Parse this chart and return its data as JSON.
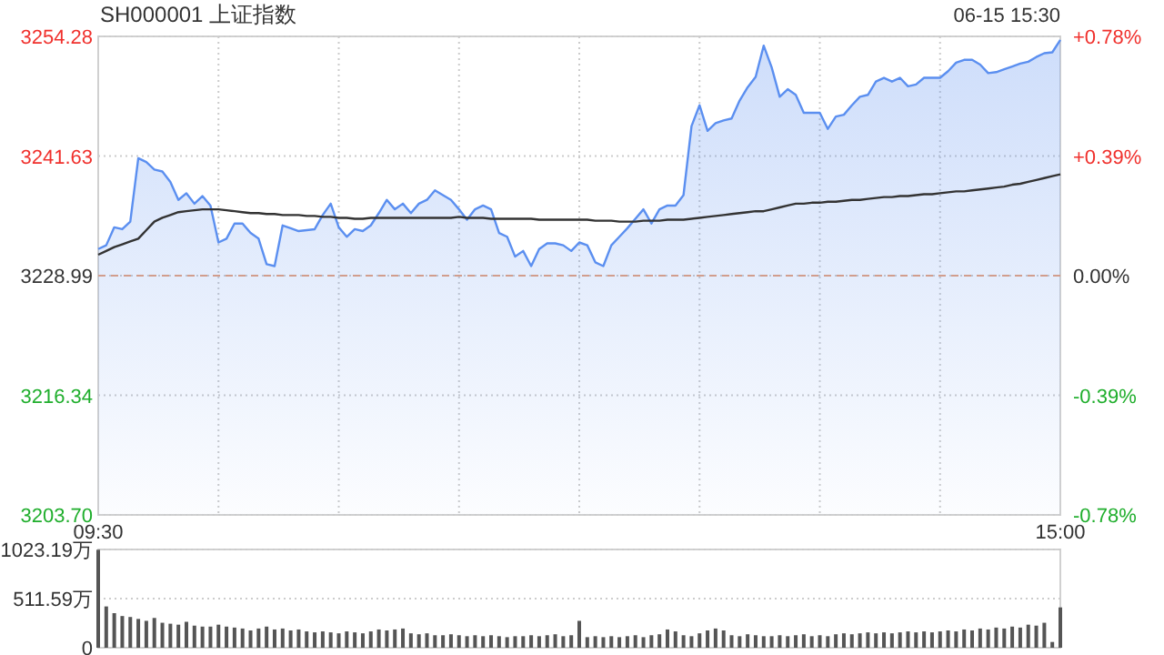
{
  "chart_data": [
    {
      "type": "area",
      "title": "SH000001 上证指数",
      "annotations": [
        "06-15 15:30"
      ],
      "ylim": [
        3203.7,
        3254.28
      ],
      "y2lim": [
        -0.78,
        0.78
      ],
      "categories": [
        "09:30",
        null,
        null,
        null,
        null,
        null,
        null,
        null,
        null,
        null,
        null,
        null,
        null,
        null,
        null,
        null,
        null,
        null,
        null,
        null,
        null,
        null,
        null,
        null,
        null,
        null,
        null,
        null,
        null,
        null,
        null,
        null,
        null,
        null,
        null,
        null,
        null,
        null,
        null,
        null,
        null,
        null,
        null,
        null,
        null,
        null,
        null,
        null,
        null,
        null,
        null,
        null,
        null,
        null,
        null,
        null,
        null,
        null,
        null,
        null,
        null,
        null,
        null,
        null,
        null,
        null,
        null,
        null,
        null,
        null,
        null,
        null,
        null,
        null,
        null,
        null,
        null,
        null,
        null,
        null,
        null,
        null,
        null,
        null,
        null,
        null,
        null,
        null,
        null,
        null,
        null,
        null,
        null,
        null,
        null,
        null,
        null,
        null,
        null,
        null,
        null,
        null,
        null,
        null,
        null,
        null,
        null,
        null,
        null,
        null,
        null,
        null,
        null,
        null,
        null,
        null,
        null,
        null,
        null,
        null,
        "15:00"
      ],
      "yticks": [
        {
          "value": 3203.7,
          "label": "3203.70"
        },
        3216.34,
        3228.99,
        3241.63,
        3254.28
      ],
      "y2ticks": [
        {
          "value": -0.78,
          "label": "-0.78%"
        },
        {
          "value": -0.39,
          "label": "-0.39%"
        },
        {
          "value": 0,
          "label": "0.00%"
        },
        {
          "value": 0.39,
          "label": "+0.39%"
        },
        {
          "value": 0.78,
          "label": "+0.78%"
        }
      ],
      "grid": true,
      "ref_lines": [
        {
          "axis": "y",
          "value": 3228.99,
          "color": "#e8a07a",
          "line_style": "dashed"
        }
      ],
      "series": [
        {
          "color": "#5b8ff0",
          "values": [
            3231.8,
            3232.2,
            3234.1,
            3233.9,
            3234.7,
            3241.4,
            3241.0,
            3240.2,
            3240.0,
            3238.9,
            3237.0,
            3237.7,
            3236.6,
            3237.4,
            3236.4,
            3232.5,
            3232.9,
            3234.5,
            3234.5,
            3233.5,
            3232.9,
            3230.2,
            3230.0,
            3234.3,
            3234.0,
            3233.7,
            3233.8,
            3233.9,
            3235.4,
            3236.6,
            3234.1,
            3233.1,
            3233.9,
            3233.7,
            3234.3,
            3235.6,
            3237.0,
            3236.0,
            3236.6,
            3235.6,
            3236.6,
            3237.0,
            3238.0,
            3237.5,
            3237.0,
            3236.0,
            3234.9,
            3236.0,
            3236.4,
            3236.0,
            3233.5,
            3233.1,
            3231.0,
            3231.6,
            3230.0,
            3231.8,
            3232.4,
            3232.4,
            3232.2,
            3231.6,
            3232.5,
            3232.2,
            3230.4,
            3230.0,
            3232.2,
            3233.1,
            3234.0,
            3235.0,
            3236.0,
            3234.5,
            3236.0,
            3236.4,
            3236.4,
            3237.5,
            3244.8,
            3247.0,
            3244.3,
            3245.1,
            3245.4,
            3245.6,
            3247.5,
            3248.9,
            3250.0,
            3253.3,
            3251.0,
            3247.9,
            3248.7,
            3248.1,
            3246.2,
            3246.2,
            3246.2,
            3244.5,
            3245.8,
            3246.0,
            3247.0,
            3247.9,
            3248.1,
            3249.5,
            3249.9,
            3249.5,
            3249.9,
            3249.0,
            3249.2,
            3249.9,
            3249.9,
            3249.9,
            3250.6,
            3251.5,
            3251.8,
            3251.8,
            3251.3,
            3250.4,
            3250.5,
            3250.8,
            3251.1,
            3251.4,
            3251.6,
            3252.1,
            3252.5,
            3252.6,
            3253.9
          ]
        },
        {
          "type": "line",
          "color": "#333333",
          "values": [
            3231.2,
            3231.6,
            3232.0,
            3232.3,
            3232.6,
            3232.9,
            3233.8,
            3234.7,
            3235.1,
            3235.4,
            3235.7,
            3235.8,
            3235.9,
            3236.0,
            3236.0,
            3236.0,
            3235.9,
            3235.8,
            3235.7,
            3235.6,
            3235.6,
            3235.5,
            3235.5,
            3235.4,
            3235.4,
            3235.4,
            3235.3,
            3235.3,
            3235.2,
            3235.2,
            3235.1,
            3235.1,
            3235.0,
            3235.0,
            3235.1,
            3235.1,
            3235.1,
            3235.1,
            3235.1,
            3235.1,
            3235.1,
            3235.1,
            3235.1,
            3235.1,
            3235.1,
            3235.2,
            3235.1,
            3235.1,
            3235.1,
            3235.0,
            3235.0,
            3235.0,
            3235.0,
            3235.0,
            3235.0,
            3234.9,
            3234.9,
            3234.9,
            3234.9,
            3234.9,
            3234.9,
            3234.9,
            3234.8,
            3234.8,
            3234.8,
            3234.7,
            3234.7,
            3234.7,
            3234.8,
            3234.8,
            3234.8,
            3234.9,
            3234.9,
            3234.9,
            3235.0,
            3235.1,
            3235.2,
            3235.3,
            3235.4,
            3235.5,
            3235.6,
            3235.7,
            3235.8,
            3235.8,
            3236.0,
            3236.2,
            3236.4,
            3236.6,
            3236.6,
            3236.7,
            3236.7,
            3236.8,
            3236.8,
            3236.9,
            3237.0,
            3237.0,
            3237.1,
            3237.2,
            3237.3,
            3237.3,
            3237.4,
            3237.4,
            3237.5,
            3237.6,
            3237.6,
            3237.7,
            3237.8,
            3237.9,
            3237.9,
            3238.0,
            3238.1,
            3238.2,
            3238.3,
            3238.4,
            3238.6,
            3238.7,
            3238.9,
            3239.1,
            3239.3,
            3239.5,
            3239.7
          ]
        }
      ]
    },
    {
      "type": "bar",
      "ylim": [
        0,
        1023.19
      ],
      "grid": "y",
      "categories": [
        null,
        null,
        null,
        null,
        null,
        null,
        null,
        null,
        null,
        null,
        null,
        null,
        null,
        null,
        null,
        null,
        null,
        null,
        null,
        null,
        null,
        null,
        null,
        null,
        null,
        null,
        null,
        null,
        null,
        null,
        null,
        null,
        null,
        null,
        null,
        null,
        null,
        null,
        null,
        null,
        null,
        null,
        null,
        null,
        null,
        null,
        null,
        null,
        null,
        null,
        null,
        null,
        null,
        null,
        null,
        null,
        null,
        null,
        null,
        null,
        null,
        null,
        null,
        null,
        null,
        null,
        null,
        null,
        null,
        null,
        null,
        null,
        null,
        null,
        null,
        null,
        null,
        null,
        null,
        null,
        null,
        null,
        null,
        null,
        null,
        null,
        null,
        null,
        null,
        null,
        null,
        null,
        null,
        null,
        null,
        null,
        null,
        null,
        null,
        null,
        null,
        null,
        null,
        null,
        null,
        null,
        null,
        null,
        null,
        null,
        null,
        null,
        null,
        null,
        null,
        null,
        null,
        null,
        null,
        null,
        null
      ],
      "yticks": [
        0,
        {
          "value": 511.59,
          "label": "511.59万"
        },
        {
          "value": 1023.19,
          "label": "1023.19万"
        }
      ],
      "series": [
        {
          "color": "#555555",
          "values": [
            1020,
            430,
            360,
            330,
            320,
            300,
            280,
            310,
            260,
            250,
            240,
            270,
            230,
            220,
            220,
            240,
            220,
            210,
            200,
            180,
            200,
            220,
            190,
            200,
            180,
            190,
            170,
            160,
            170,
            160,
            150,
            170,
            160,
            150,
            170,
            190,
            180,
            190,
            200,
            150,
            140,
            150,
            130,
            130,
            140,
            130,
            120,
            130,
            120,
            130,
            120,
            110,
            120,
            120,
            130,
            120,
            130,
            140,
            120,
            130,
            280,
            110,
            120,
            110,
            120,
            110,
            120,
            130,
            110,
            130,
            140,
            190,
            170,
            130,
            120,
            150,
            180,
            200,
            180,
            130,
            120,
            140,
            130,
            120,
            120,
            130,
            120,
            130,
            140,
            120,
            130,
            120,
            140,
            150,
            140,
            150,
            160,
            150,
            160,
            150,
            160,
            170,
            160,
            170,
            160,
            170,
            180,
            170,
            190,
            180,
            200,
            190,
            210,
            200,
            220,
            210,
            240,
            230,
            260,
            60,
            420
          ]
        }
      ]
    }
  ]
}
